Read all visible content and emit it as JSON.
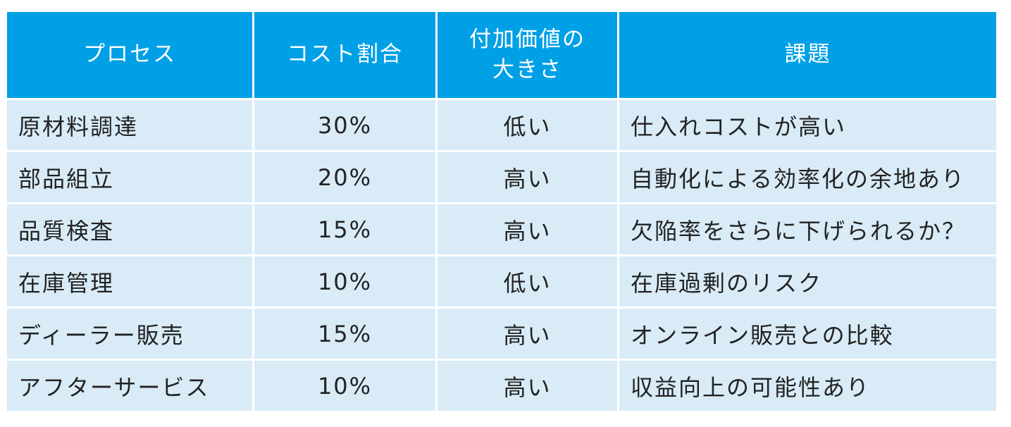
{
  "table": {
    "headers": {
      "process": "プロセス",
      "cost_ratio": "コスト割合",
      "added_value_line1": "付加価値の",
      "added_value_line2": "大きさ",
      "issues": "課題"
    },
    "rows": [
      {
        "process": "原材料調達",
        "cost_ratio": "30%",
        "added_value": "低い",
        "issue": "仕入れコストが高い"
      },
      {
        "process": "部品組立",
        "cost_ratio": "20%",
        "added_value": "高い",
        "issue": "自動化による効率化の余地あり"
      },
      {
        "process": "品質検査",
        "cost_ratio": "15%",
        "added_value": "高い",
        "issue": "欠陥率をさらに下げられるか？"
      },
      {
        "process": "在庫管理",
        "cost_ratio": "10%",
        "added_value": "低い",
        "issue": "在庫過剰のリスク"
      },
      {
        "process": "ディーラー販売",
        "cost_ratio": "15%",
        "added_value": "高い",
        "issue": "オンライン販売との比較"
      },
      {
        "process": "アフターサービス",
        "cost_ratio": "10%",
        "added_value": "高い",
        "issue": "収益向上の可能性あり"
      }
    ]
  },
  "colors": {
    "header_bg": "#00a0e6",
    "header_text": "#ffffff",
    "cell_bg": "#d8ebf7",
    "cell_text": "#222222"
  }
}
